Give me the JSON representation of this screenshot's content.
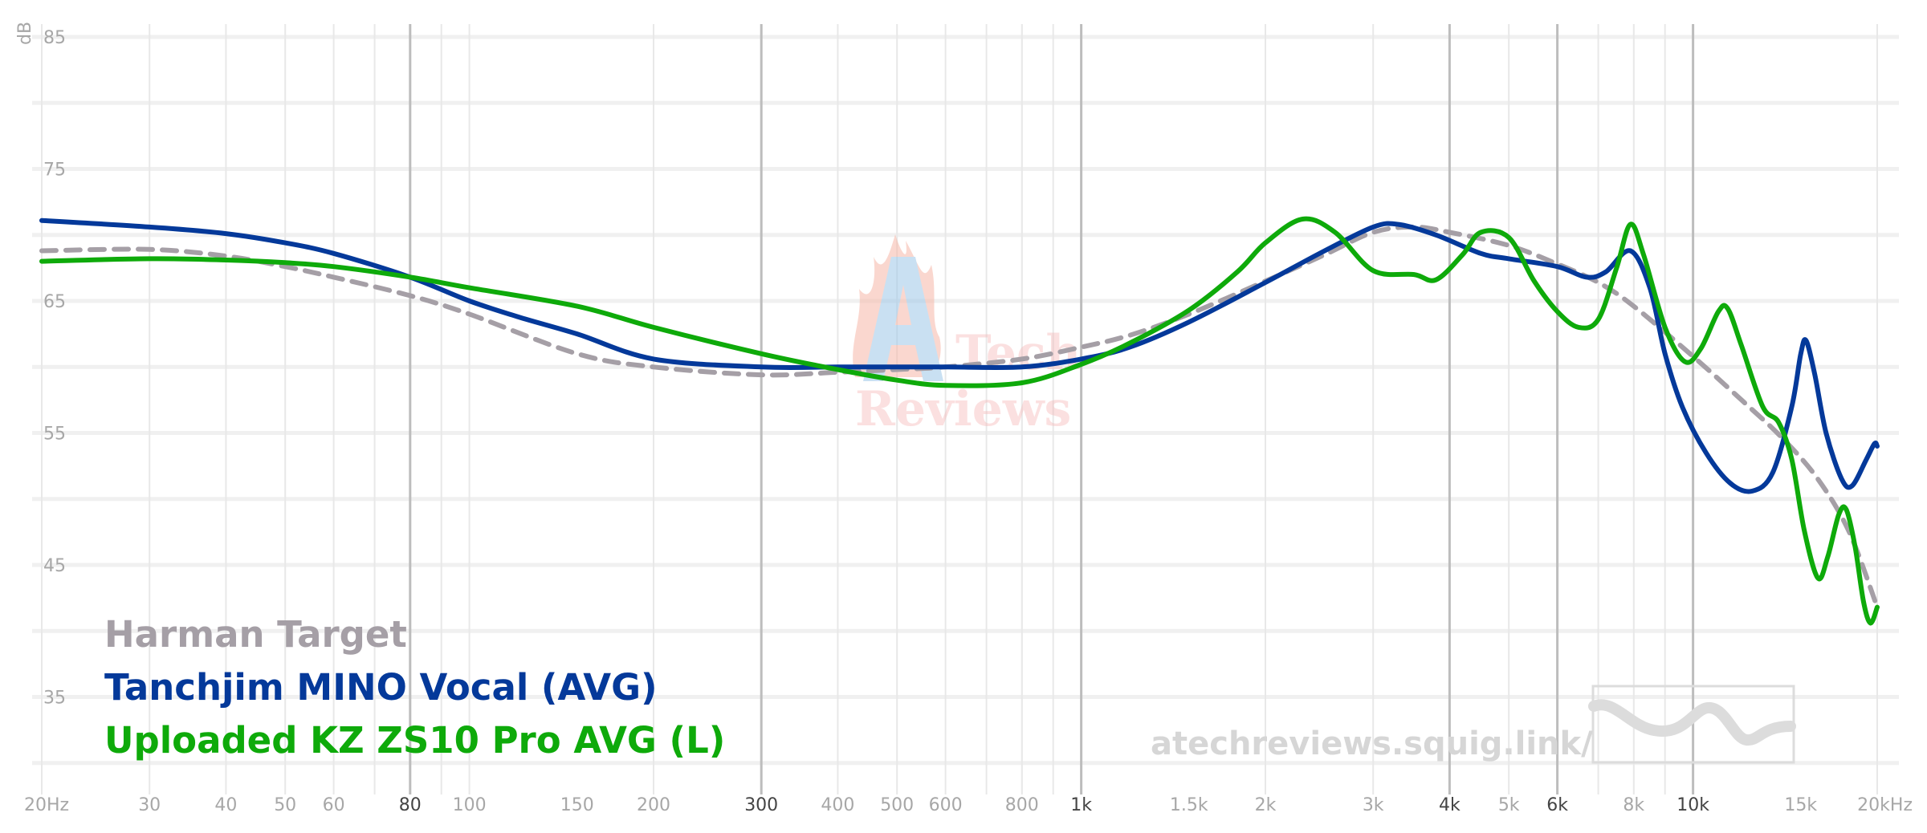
{
  "chart_data": {
    "type": "line",
    "ylabel": "dB",
    "xscale": "log",
    "xlim": [
      20,
      20000
    ],
    "ylim": [
      30,
      86
    ],
    "grid": true,
    "legend_position": "bottom-left",
    "y_ticks": [
      {
        "value": 85,
        "label": "85"
      },
      {
        "value": 75,
        "label": "75"
      },
      {
        "value": 65,
        "label": "65"
      },
      {
        "value": 55,
        "label": "55"
      },
      {
        "value": 45,
        "label": "45"
      },
      {
        "value": 35,
        "label": "35"
      }
    ],
    "x_ticks": [
      {
        "value": 20,
        "label": "20Hz",
        "major": false
      },
      {
        "value": 30,
        "label": "30",
        "major": false
      },
      {
        "value": 40,
        "label": "40",
        "major": false
      },
      {
        "value": 50,
        "label": "50",
        "major": false
      },
      {
        "value": 60,
        "label": "60",
        "major": false
      },
      {
        "value": 80,
        "label": "80",
        "major": true
      },
      {
        "value": 100,
        "label": "100",
        "major": false
      },
      {
        "value": 150,
        "label": "150",
        "major": false
      },
      {
        "value": 200,
        "label": "200",
        "major": false
      },
      {
        "value": 300,
        "label": "300",
        "major": true
      },
      {
        "value": 400,
        "label": "400",
        "major": false
      },
      {
        "value": 500,
        "label": "500",
        "major": false
      },
      {
        "value": 600,
        "label": "600",
        "major": false
      },
      {
        "value": 800,
        "label": "800",
        "major": false
      },
      {
        "value": 1000,
        "label": "1k",
        "major": true
      },
      {
        "value": 1500,
        "label": "1.5k",
        "major": false
      },
      {
        "value": 2000,
        "label": "2k",
        "major": false
      },
      {
        "value": 3000,
        "label": "3k",
        "major": false
      },
      {
        "value": 4000,
        "label": "4k",
        "major": true
      },
      {
        "value": 5000,
        "label": "5k",
        "major": false
      },
      {
        "value": 6000,
        "label": "6k",
        "major": true
      },
      {
        "value": 8000,
        "label": "8k",
        "major": false
      },
      {
        "value": 10000,
        "label": "10k",
        "major": true
      },
      {
        "value": 15000,
        "label": "15k",
        "major": false
      },
      {
        "value": 20000,
        "label": "20kHz",
        "major": false
      }
    ],
    "series": [
      {
        "name": "Harman Target",
        "color": "#a59fa6",
        "dashed": true,
        "points": [
          [
            20,
            68.8
          ],
          [
            30,
            68.9
          ],
          [
            40,
            68.4
          ],
          [
            50,
            67.6
          ],
          [
            60,
            66.8
          ],
          [
            80,
            65.4
          ],
          [
            100,
            64.0
          ],
          [
            150,
            61.0
          ],
          [
            200,
            60.0
          ],
          [
            300,
            59.4
          ],
          [
            400,
            59.6
          ],
          [
            500,
            59.8
          ],
          [
            600,
            60.0
          ],
          [
            800,
            60.6
          ],
          [
            1000,
            61.5
          ],
          [
            1200,
            62.4
          ],
          [
            1500,
            64.0
          ],
          [
            2000,
            66.5
          ],
          [
            2500,
            68.5
          ],
          [
            3000,
            70.2
          ],
          [
            3500,
            70.6
          ],
          [
            4000,
            70.2
          ],
          [
            5000,
            69.2
          ],
          [
            6000,
            67.8
          ],
          [
            7000,
            66.4
          ],
          [
            8000,
            64.6
          ],
          [
            10000,
            60.8
          ],
          [
            12000,
            57.5
          ],
          [
            14000,
            54.6
          ],
          [
            16000,
            51.5
          ],
          [
            18000,
            47.5
          ],
          [
            20000,
            41.8
          ]
        ]
      },
      {
        "name": "Tanchjim MINO Vocal (AVG)",
        "color": "#04399a",
        "dashed": false,
        "points": [
          [
            20,
            71.1
          ],
          [
            30,
            70.6
          ],
          [
            40,
            70.1
          ],
          [
            50,
            69.4
          ],
          [
            60,
            68.6
          ],
          [
            80,
            66.8
          ],
          [
            100,
            65.0
          ],
          [
            120,
            63.8
          ],
          [
            150,
            62.5
          ],
          [
            200,
            60.6
          ],
          [
            300,
            60.0
          ],
          [
            400,
            60.0
          ],
          [
            500,
            60.0
          ],
          [
            600,
            60.0
          ],
          [
            800,
            60.0
          ],
          [
            1000,
            60.6
          ],
          [
            1200,
            61.5
          ],
          [
            1500,
            63.4
          ],
          [
            2000,
            66.4
          ],
          [
            2500,
            68.8
          ],
          [
            3000,
            70.6
          ],
          [
            3300,
            70.8
          ],
          [
            3800,
            70.0
          ],
          [
            4500,
            68.6
          ],
          [
            5000,
            68.2
          ],
          [
            6000,
            67.6
          ],
          [
            6700,
            66.8
          ],
          [
            7200,
            67.2
          ],
          [
            7900,
            68.8
          ],
          [
            8500,
            66.0
          ],
          [
            9000,
            61.0
          ],
          [
            9600,
            57.0
          ],
          [
            10500,
            53.5
          ],
          [
            11500,
            51.2
          ],
          [
            12500,
            50.6
          ],
          [
            13500,
            52.0
          ],
          [
            14500,
            57.0
          ],
          [
            15000,
            61.0
          ],
          [
            15300,
            62.0
          ],
          [
            15800,
            59.5
          ],
          [
            16500,
            55.0
          ],
          [
            17500,
            51.5
          ],
          [
            18200,
            51.0
          ],
          [
            19200,
            53.0
          ],
          [
            19800,
            54.2
          ],
          [
            20000,
            54.0
          ]
        ]
      },
      {
        "name": "Uploaded KZ ZS10 Pro AVG (L)",
        "color": "#0eaa0a",
        "dashed": false,
        "points": [
          [
            20,
            68.0
          ],
          [
            30,
            68.2
          ],
          [
            40,
            68.1
          ],
          [
            50,
            67.9
          ],
          [
            60,
            67.6
          ],
          [
            80,
            66.8
          ],
          [
            100,
            66.0
          ],
          [
            150,
            64.6
          ],
          [
            200,
            63.0
          ],
          [
            300,
            61.0
          ],
          [
            400,
            59.8
          ],
          [
            500,
            59.0
          ],
          [
            600,
            58.6
          ],
          [
            800,
            58.8
          ],
          [
            1000,
            60.2
          ],
          [
            1200,
            61.8
          ],
          [
            1500,
            64.3
          ],
          [
            1800,
            67.2
          ],
          [
            2000,
            69.4
          ],
          [
            2300,
            71.2
          ],
          [
            2600,
            70.2
          ],
          [
            3000,
            67.3
          ],
          [
            3500,
            67.0
          ],
          [
            3800,
            66.6
          ],
          [
            4200,
            68.5
          ],
          [
            4500,
            70.2
          ],
          [
            5000,
            69.8
          ],
          [
            5500,
            66.5
          ],
          [
            6000,
            64.2
          ],
          [
            6500,
            63.0
          ],
          [
            7000,
            63.6
          ],
          [
            7500,
            67.5
          ],
          [
            7900,
            70.8
          ],
          [
            8300,
            68.5
          ],
          [
            9000,
            63.0
          ],
          [
            9700,
            60.4
          ],
          [
            10300,
            61.4
          ],
          [
            11000,
            64.2
          ],
          [
            11400,
            64.4
          ],
          [
            12000,
            61.6
          ],
          [
            13000,
            57.0
          ],
          [
            13800,
            55.8
          ],
          [
            14500,
            53.0
          ],
          [
            15200,
            47.6
          ],
          [
            16000,
            44.0
          ],
          [
            16600,
            45.6
          ],
          [
            17300,
            48.8
          ],
          [
            17800,
            49.2
          ],
          [
            18400,
            46.4
          ],
          [
            19000,
            42.2
          ],
          [
            19500,
            40.6
          ],
          [
            20000,
            41.8
          ]
        ]
      }
    ]
  },
  "watermark": {
    "url": "atechreviews.squig.link/",
    "logo_word1": "Tech",
    "logo_word2": "Reviews"
  },
  "legend": {
    "labels": [
      "Harman Target",
      "Tanchjim MINO Vocal (AVG)",
      "Uploaded KZ ZS10 Pro AVG (L)"
    ]
  }
}
